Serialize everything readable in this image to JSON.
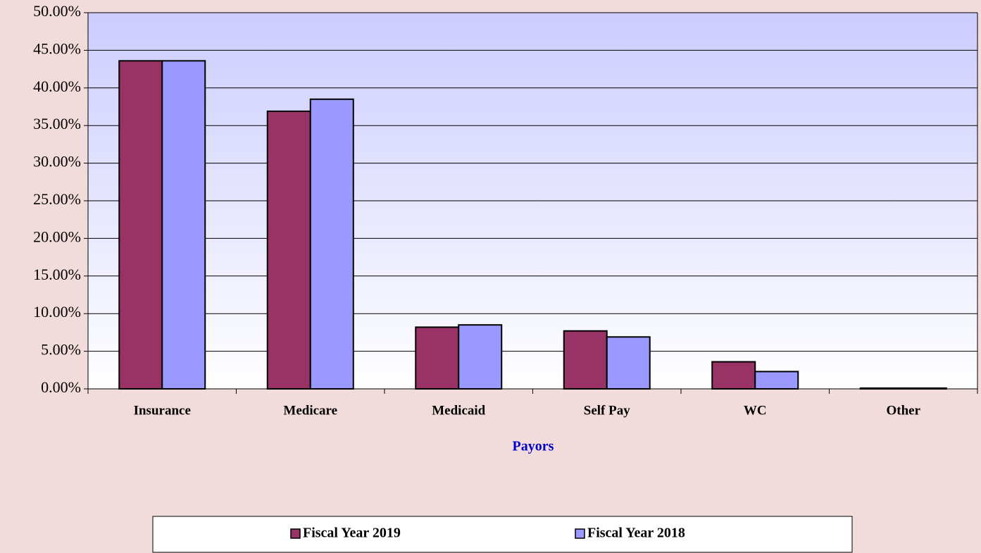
{
  "chart_data": {
    "type": "bar",
    "x_label": "Payors",
    "categories": [
      "Insurance",
      "Medicare",
      "Medicaid",
      "Self Pay",
      "WC",
      "Other"
    ],
    "series": [
      {
        "name": "Fiscal Year 2019",
        "color": "#993366",
        "values": [
          43.6,
          36.9,
          8.2,
          7.7,
          3.6,
          0.1
        ]
      },
      {
        "name": "Fiscal Year 2018",
        "color": "#9999ff",
        "values": [
          43.6,
          38.5,
          8.5,
          6.9,
          2.3,
          0.1
        ]
      }
    ],
    "ylim": [
      0,
      50
    ],
    "yticks": [
      {
        "value": 0,
        "label": "0.00%"
      },
      {
        "value": 5,
        "label": "5.00%"
      },
      {
        "value": 10,
        "label": "10.00%"
      },
      {
        "value": 15,
        "label": "15.00%"
      },
      {
        "value": 20,
        "label": "20.00%"
      },
      {
        "value": 25,
        "label": "25.00%"
      },
      {
        "value": 30,
        "label": "30.00%"
      },
      {
        "value": 35,
        "label": "35.00%"
      },
      {
        "value": 40,
        "label": "40.00%"
      },
      {
        "value": 45,
        "label": "45.00%"
      },
      {
        "value": 50,
        "label": "50.00%"
      }
    ],
    "grid": true,
    "legend": "bottom"
  }
}
